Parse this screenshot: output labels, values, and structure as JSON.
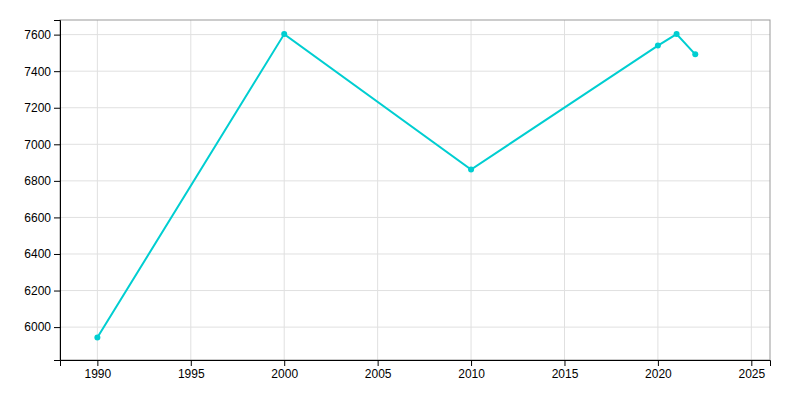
{
  "chart_data": {
    "type": "line",
    "x": [
      1990,
      2000,
      2010,
      2020,
      2021,
      2022
    ],
    "values": [
      5943,
      7603,
      6862,
      7540,
      7603,
      7492
    ],
    "color": "#00CED1",
    "marker": "circle",
    "xlim": [
      1988,
      2026
    ],
    "ylim": [
      5820,
      7680
    ],
    "xticks": [
      1990,
      1995,
      2000,
      2005,
      2010,
      2015,
      2020,
      2025
    ],
    "yticks": [
      6000,
      6200,
      6400,
      6600,
      6800,
      7000,
      7200,
      7400,
      7600
    ],
    "grid": true
  }
}
